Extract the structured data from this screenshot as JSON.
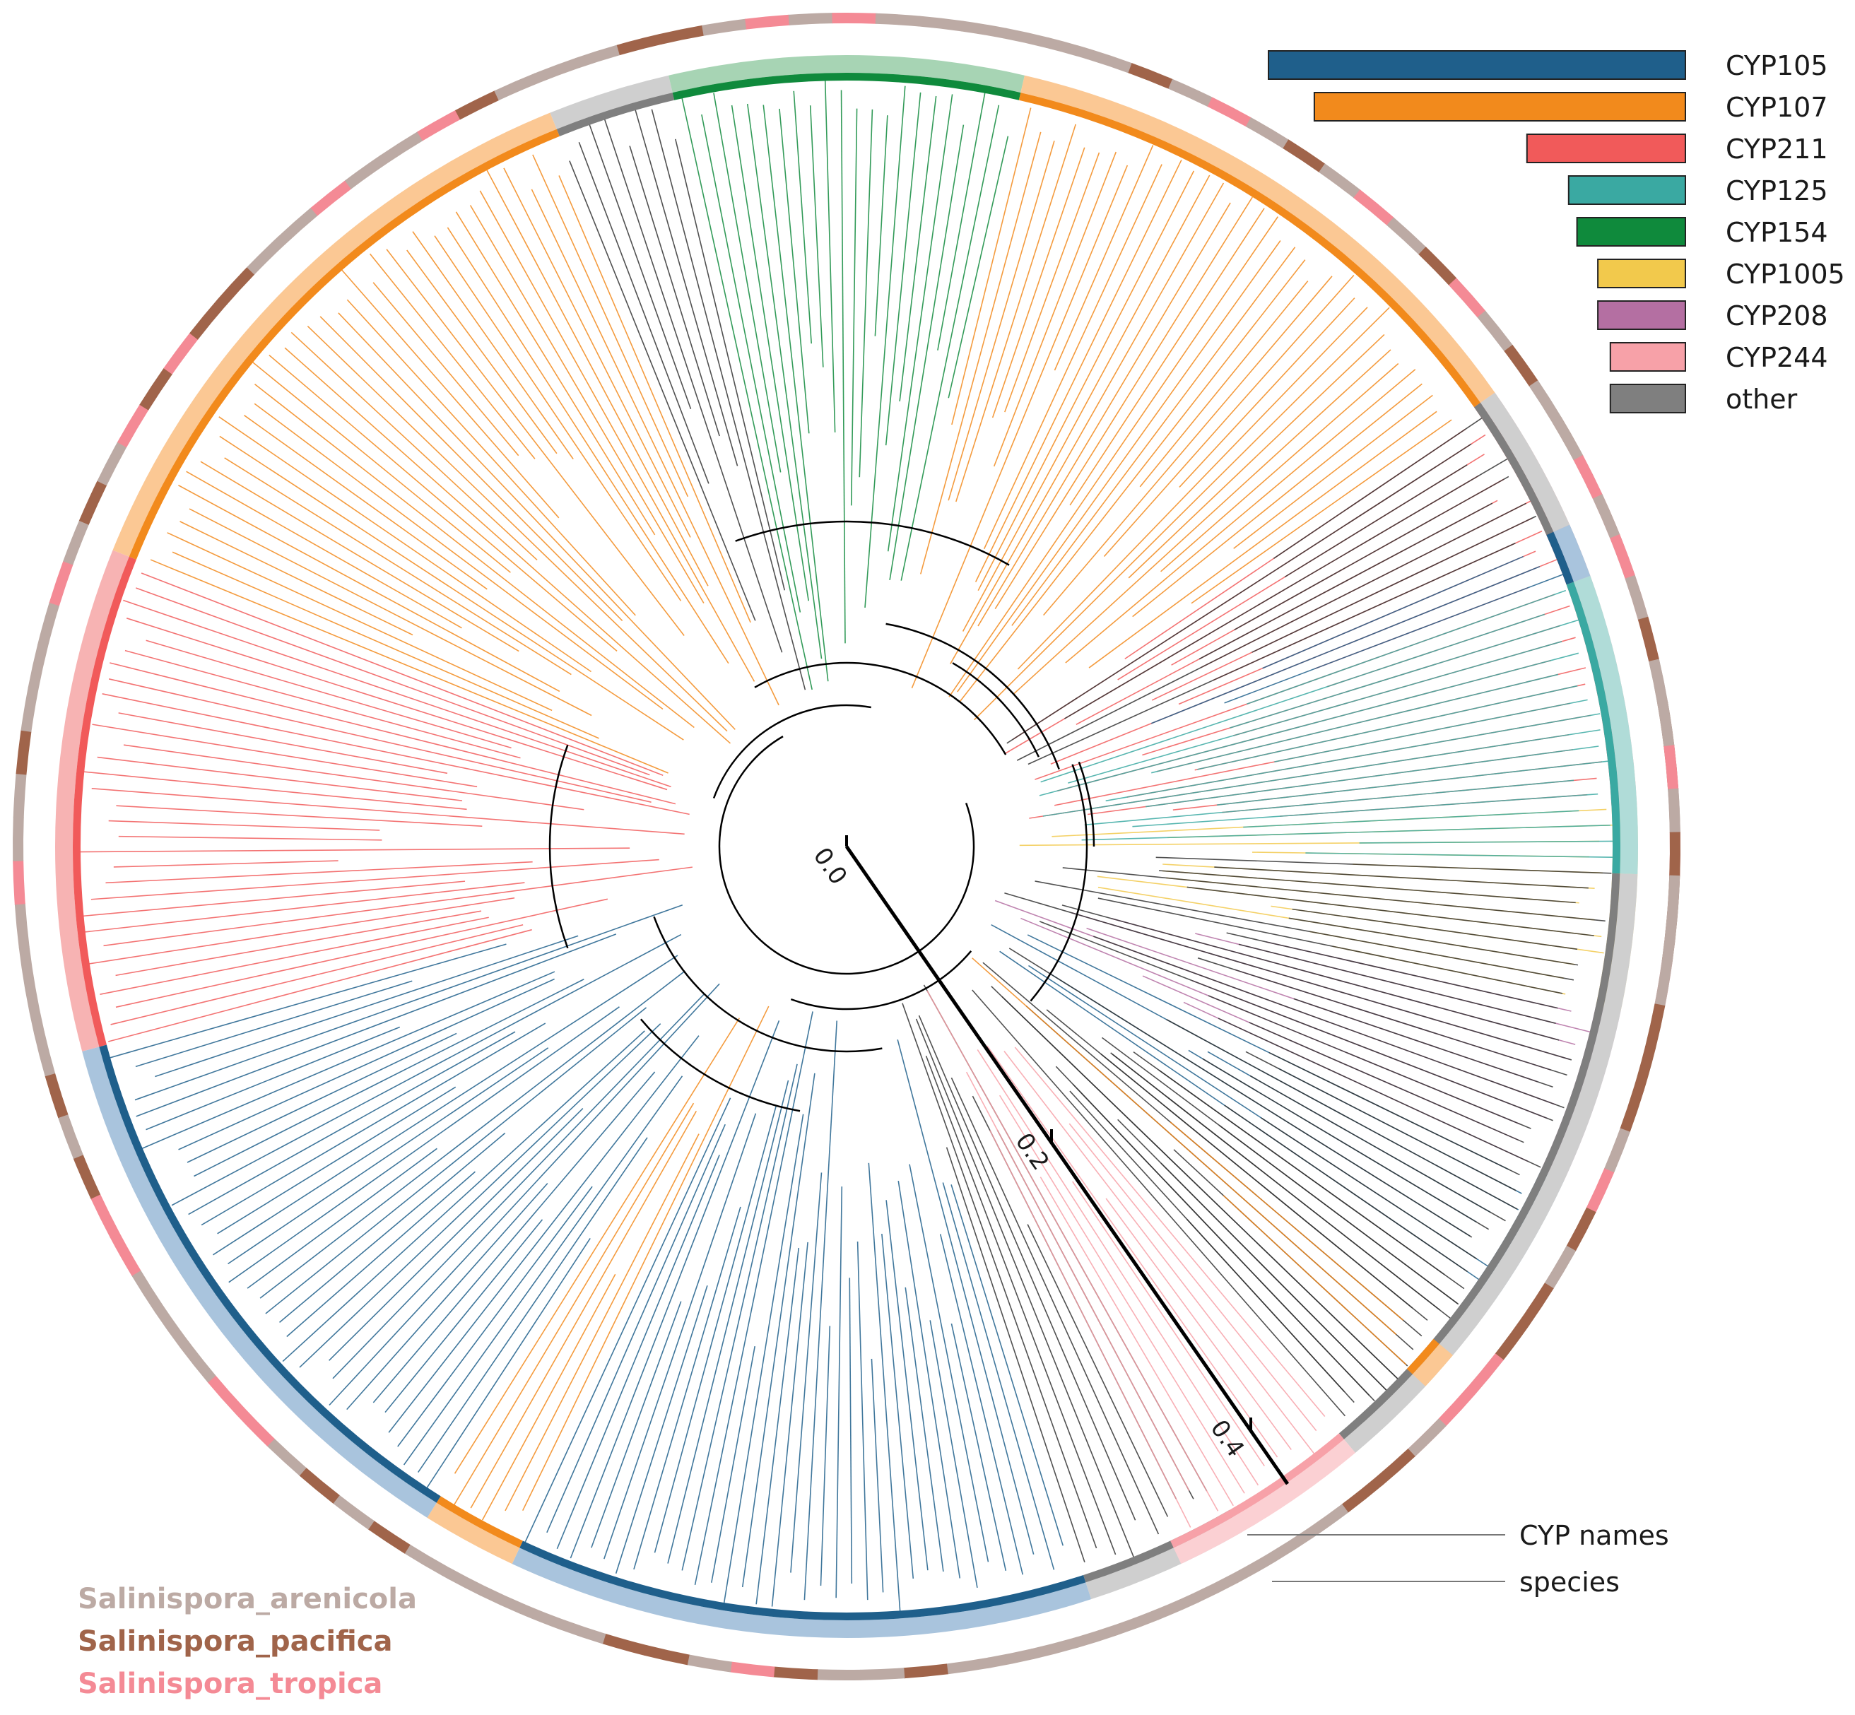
{
  "figure": {
    "kind": "circular phylogenetic tree of cytochrome P450 (CYP) genes",
    "ring_labels": {
      "cyp_names": "CYP names",
      "species": "species"
    },
    "scale_bar": {
      "ticks": [
        {
          "value": 0.0,
          "label": "0.0"
        },
        {
          "value": 0.2,
          "label": "0.2"
        },
        {
          "value": 0.4,
          "label": "0.4"
        }
      ]
    }
  },
  "chart_data": {
    "type": "other",
    "title": "",
    "cyp_families": [
      {
        "label": "CYP105",
        "color": "#1f5f8b",
        "light": "#a9c4dd",
        "relative_count": 1.0
      },
      {
        "label": "CYP107",
        "color": "#f28a1c",
        "light": "#fbc894",
        "relative_count": 0.89
      },
      {
        "label": "CYP211",
        "color": "#f15a5a",
        "light": "#f7b3b3",
        "relative_count": 0.38
      },
      {
        "label": "CYP125",
        "color": "#3aa9a2",
        "light": "#b0dcd8",
        "relative_count": 0.28
      },
      {
        "label": "CYP154",
        "color": "#0f8a3c",
        "light": "#a7d4b4",
        "relative_count": 0.26
      },
      {
        "label": "CYP1005",
        "color": "#f2c94c",
        "light": "#f9e3a4",
        "relative_count": 0.21
      },
      {
        "label": "CYP208",
        "color": "#b46fa2",
        "light": "#dcb8d3",
        "relative_count": 0.21
      },
      {
        "label": "CYP244",
        "color": "#f7a1a8",
        "light": "#fbd0d3",
        "relative_count": 0.18
      },
      {
        "label": "other",
        "color": "#7f7f7f",
        "light": "#cfcfcf",
        "relative_count": 0.18
      }
    ],
    "species": [
      {
        "label": "Salinispora_arenicola",
        "color": "#bcaaa4"
      },
      {
        "label": "Salinispora_pacifica",
        "color": "#a0644a"
      },
      {
        "label": "Salinispora_tropica",
        "color": "#f48a95"
      }
    ],
    "clade_sectors_deg": [
      {
        "family": "CYP211",
        "start": 325,
        "end": 357
      },
      {
        "family": "CYP1005",
        "start": 357,
        "end": 372
      },
      {
        "family": "CYP208",
        "start": 372,
        "end": 385
      },
      {
        "family": "CYP105",
        "start": 385,
        "end": 395
      },
      {
        "family": "other",
        "start": 395,
        "end": 408
      },
      {
        "family": "other",
        "start": 420,
        "end": 432
      },
      {
        "family": "CYP105",
        "start": 432,
        "end": 475
      },
      {
        "family": "CYP107",
        "start": 475,
        "end": 482
      },
      {
        "family": "CYP105",
        "start": 482,
        "end": 525
      },
      {
        "family": "CYP211",
        "start": 525,
        "end": 562
      },
      {
        "family": "CYP107",
        "start": 562,
        "end": 608
      },
      {
        "family": "other",
        "start": 608,
        "end": 617
      },
      {
        "family": "CYP154",
        "start": 617,
        "end": 643
      },
      {
        "family": "CYP107",
        "start": 643,
        "end": 685
      },
      {
        "family": "other",
        "start": 685,
        "end": 696
      },
      {
        "family": "CYP105",
        "start": 696,
        "end": 700
      },
      {
        "family": "CYP125",
        "start": 700,
        "end": 722
      },
      {
        "family": "other",
        "start": 722,
        "end": 760
      },
      {
        "family": "CYP107",
        "start": 760,
        "end": 763
      },
      {
        "family": "other",
        "start": 763,
        "end": 770
      },
      {
        "family": "CYP244",
        "start": 770,
        "end": 785
      }
    ]
  }
}
